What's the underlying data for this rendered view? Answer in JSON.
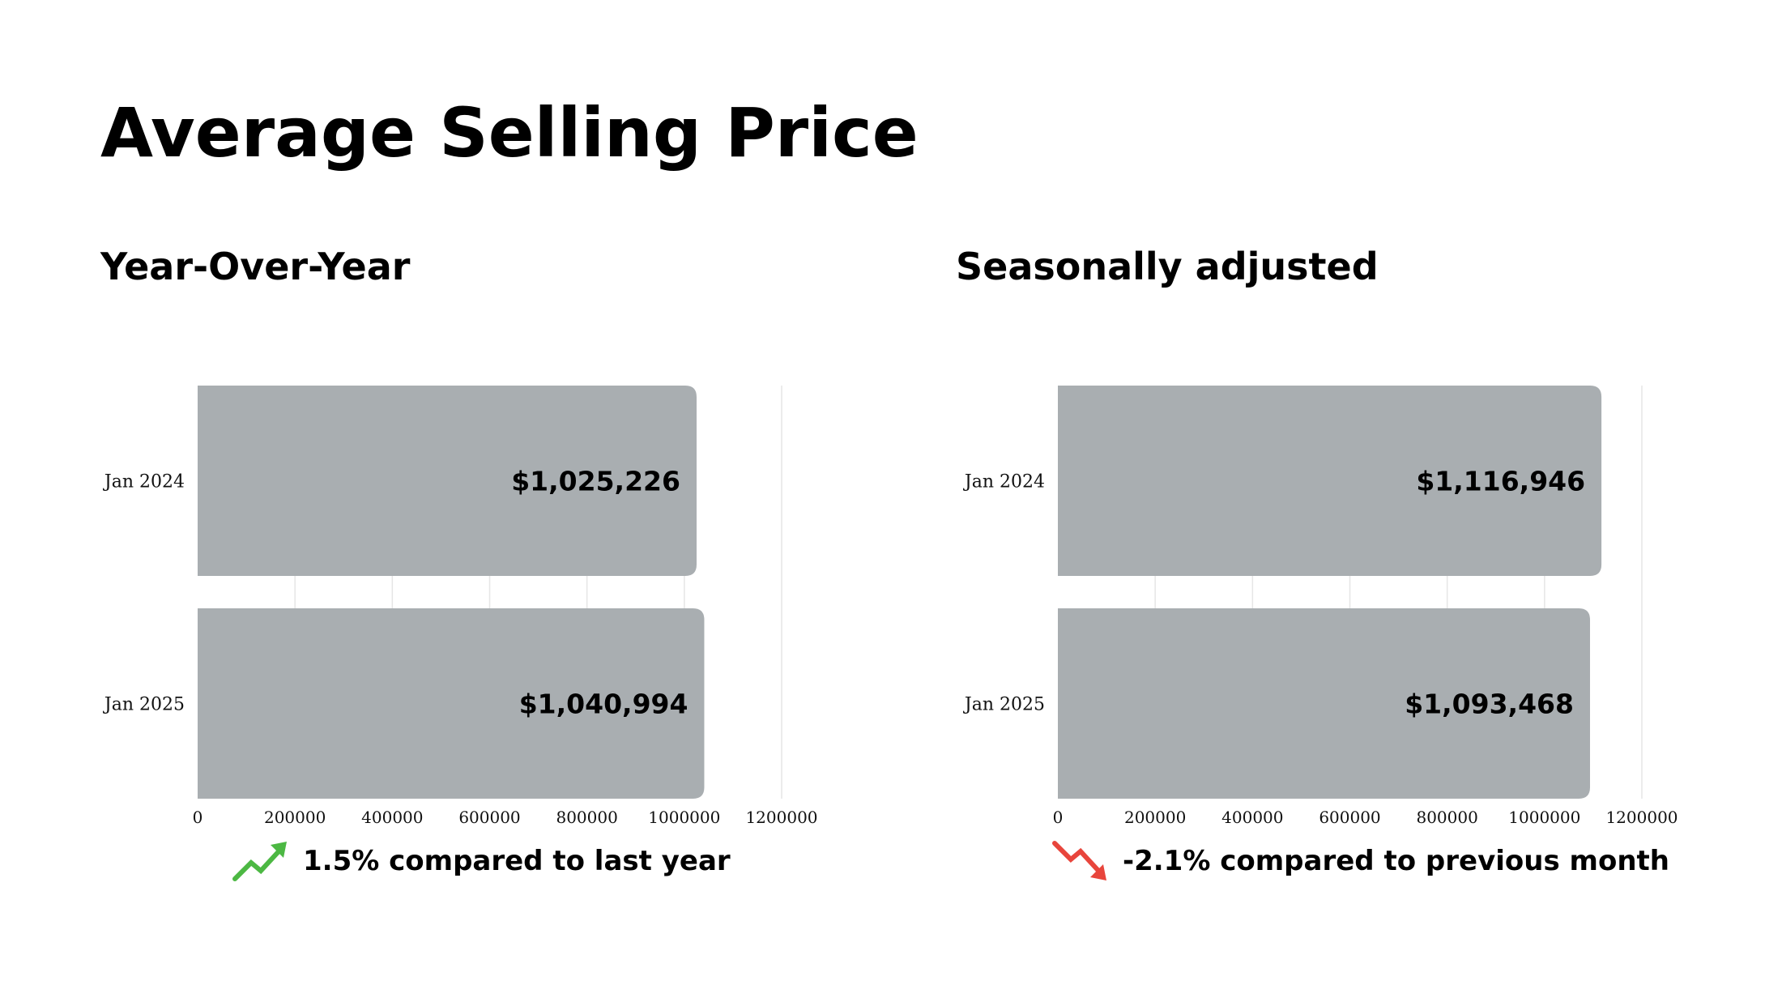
{
  "title": "Average Selling Price",
  "colors": {
    "bar": "#a9aeb1",
    "up": "#4cb843",
    "down": "#e8453c"
  },
  "chart_data": [
    {
      "type": "bar",
      "orientation": "horizontal",
      "title": "Year-Over-Year",
      "categories": [
        "Jan 2024",
        "Jan 2025"
      ],
      "values": [
        1025226,
        1040994
      ],
      "value_labels": [
        "$1,025,226",
        "$1,040,994"
      ],
      "xlim": [
        0,
        1200000
      ],
      "xticks": [
        0,
        200000,
        400000,
        600000,
        800000,
        1000000,
        1200000
      ],
      "grid": true,
      "change": {
        "direction": "up",
        "icon": "trend-up-arrow-icon",
        "text": "1.5% compared to last year"
      }
    },
    {
      "type": "bar",
      "orientation": "horizontal",
      "title": "Seasonally adjusted",
      "categories": [
        "Jan 2024",
        "Jan 2025"
      ],
      "values": [
        1116946,
        1093468
      ],
      "value_labels": [
        "$1,116,946",
        "$1,093,468"
      ],
      "xlim": [
        0,
        1200000
      ],
      "xticks": [
        0,
        200000,
        400000,
        600000,
        800000,
        1000000,
        1200000
      ],
      "grid": true,
      "change": {
        "direction": "down",
        "icon": "trend-down-arrow-icon",
        "text": "-2.1% compared to previous month"
      }
    }
  ]
}
